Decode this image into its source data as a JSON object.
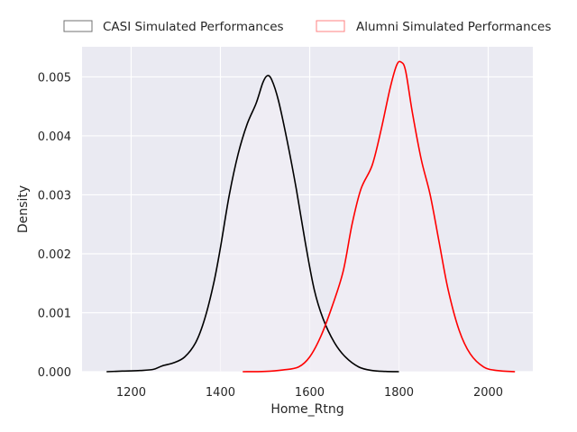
{
  "chart_data": {
    "type": "area",
    "xlabel": "Home_Rtng",
    "ylabel": "Density",
    "xlim": [
      1090,
      2100
    ],
    "ylim": [
      0,
      0.00551
    ],
    "x_ticks": [
      1200,
      1400,
      1600,
      1800,
      2000
    ],
    "y_ticks": [
      0,
      0.001,
      0.002,
      0.003,
      0.004,
      0.005
    ],
    "x_tick_labels": [
      "1200",
      "1400",
      "1600",
      "1800",
      "2000"
    ],
    "y_tick_labels": [
      "0.000",
      "0.001",
      "0.002",
      "0.003",
      "0.004",
      "0.005"
    ],
    "grid": true,
    "legend_position": "top, above plot, horizontal",
    "series": [
      {
        "name": "CASI Simulated Performances",
        "color": "#000000",
        "points": [
          [
            1145,
            0.0
          ],
          [
            1180,
            1e-05
          ],
          [
            1220,
            2e-05
          ],
          [
            1250,
            4e-05
          ],
          [
            1270,
            0.0001
          ],
          [
            1295,
            0.00015
          ],
          [
            1320,
            0.00025
          ],
          [
            1345,
            0.0005
          ],
          [
            1365,
            0.0009
          ],
          [
            1385,
            0.0015
          ],
          [
            1400,
            0.0021
          ],
          [
            1420,
            0.003
          ],
          [
            1440,
            0.0037
          ],
          [
            1460,
            0.0042
          ],
          [
            1480,
            0.00455
          ],
          [
            1495,
            0.0049
          ],
          [
            1505,
            0.00502
          ],
          [
            1515,
            0.00495
          ],
          [
            1530,
            0.0046
          ],
          [
            1550,
            0.0039
          ],
          [
            1570,
            0.0031
          ],
          [
            1590,
            0.0022
          ],
          [
            1610,
            0.0014
          ],
          [
            1630,
            0.0009
          ],
          [
            1655,
            0.0005
          ],
          [
            1680,
            0.00025
          ],
          [
            1710,
            8e-05
          ],
          [
            1740,
            2e-05
          ],
          [
            1770,
            5e-06
          ],
          [
            1800,
            0.0
          ]
        ]
      },
      {
        "name": "Alumni Simulated Performances",
        "color": "#ff0000",
        "points": [
          [
            1450,
            0.0
          ],
          [
            1500,
            5e-06
          ],
          [
            1540,
            3e-05
          ],
          [
            1575,
            8e-05
          ],
          [
            1600,
            0.00025
          ],
          [
            1625,
            0.0006
          ],
          [
            1650,
            0.0011
          ],
          [
            1675,
            0.0017
          ],
          [
            1695,
            0.0025
          ],
          [
            1715,
            0.0031
          ],
          [
            1740,
            0.0035
          ],
          [
            1760,
            0.0041
          ],
          [
            1780,
            0.0048
          ],
          [
            1795,
            0.0052
          ],
          [
            1805,
            0.00525
          ],
          [
            1815,
            0.0051
          ],
          [
            1830,
            0.0044
          ],
          [
            1850,
            0.0036
          ],
          [
            1870,
            0.003
          ],
          [
            1890,
            0.0022
          ],
          [
            1910,
            0.0014
          ],
          [
            1935,
            0.0007
          ],
          [
            1960,
            0.0003
          ],
          [
            1990,
            8e-05
          ],
          [
            2020,
            2e-05
          ],
          [
            2060,
            0.0
          ]
        ]
      }
    ]
  },
  "legend": {
    "items": [
      {
        "label": "CASI Simulated Performances",
        "edge_color": "#707070"
      },
      {
        "label": "Alumni Simulated Performances",
        "edge_color": "#ff8080"
      }
    ]
  },
  "colors": {
    "plot_background": "#eaeaf2",
    "grid": "#ffffff",
    "fill": "#f2eff6"
  }
}
